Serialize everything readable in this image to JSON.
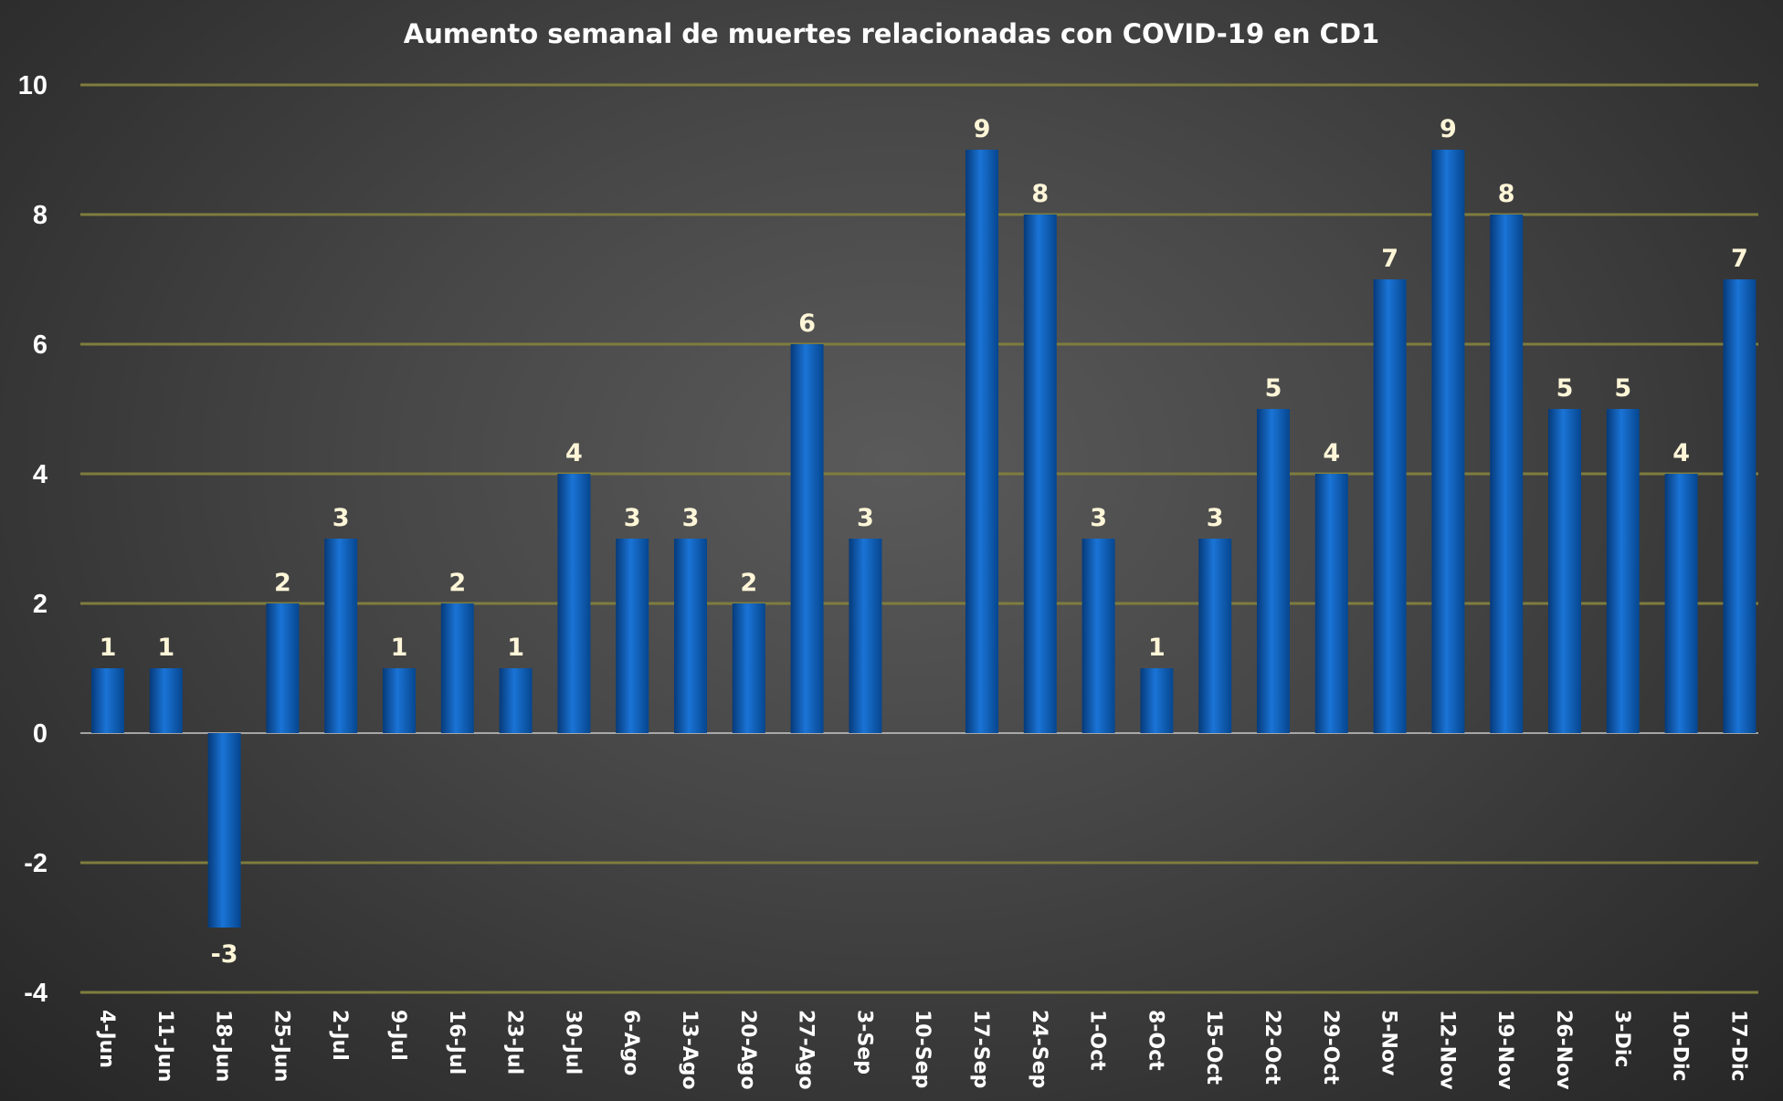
{
  "chart_data": {
    "type": "bar",
    "title": "Aumento semanal de muertes relacionadas con COVID-19 en CD1",
    "xlabel": "",
    "ylabel": "",
    "ylim": [
      -4,
      10
    ],
    "yticks": [
      -4,
      -2,
      0,
      2,
      4,
      6,
      8,
      10
    ],
    "grid": true,
    "legend": "none",
    "categories": [
      "4-Jun",
      "11-Jun",
      "18-Jun",
      "25-Jun",
      "2-Jul",
      "9-Jul",
      "16-Jul",
      "23-Jul",
      "30-Jul",
      "6-Ago",
      "13-Ago",
      "20-Ago",
      "27-Ago",
      "3-Sep",
      "10-Sep",
      "17-Sep",
      "24-Sep",
      "1-Oct",
      "8-Oct",
      "15-Oct",
      "22-Oct",
      "29-Oct",
      "5-Nov",
      "12-Nov",
      "19-Nov",
      "26-Nov",
      "3-Dic",
      "10-Dic",
      "17-Dic"
    ],
    "values": [
      1,
      1,
      -3,
      2,
      3,
      1,
      2,
      1,
      4,
      3,
      3,
      2,
      6,
      3,
      null,
      9,
      8,
      3,
      1,
      3,
      5,
      4,
      7,
      9,
      8,
      5,
      5,
      4,
      7
    ],
    "colors": {
      "bar": "#0a5ab4",
      "bar_dark": "#063a7a",
      "bar_light": "#1a74d6",
      "grid": "#7f7d3e",
      "zero_line": "#c8c8c8",
      "data_label": "#fff6d8",
      "text": "#ffffff"
    }
  }
}
